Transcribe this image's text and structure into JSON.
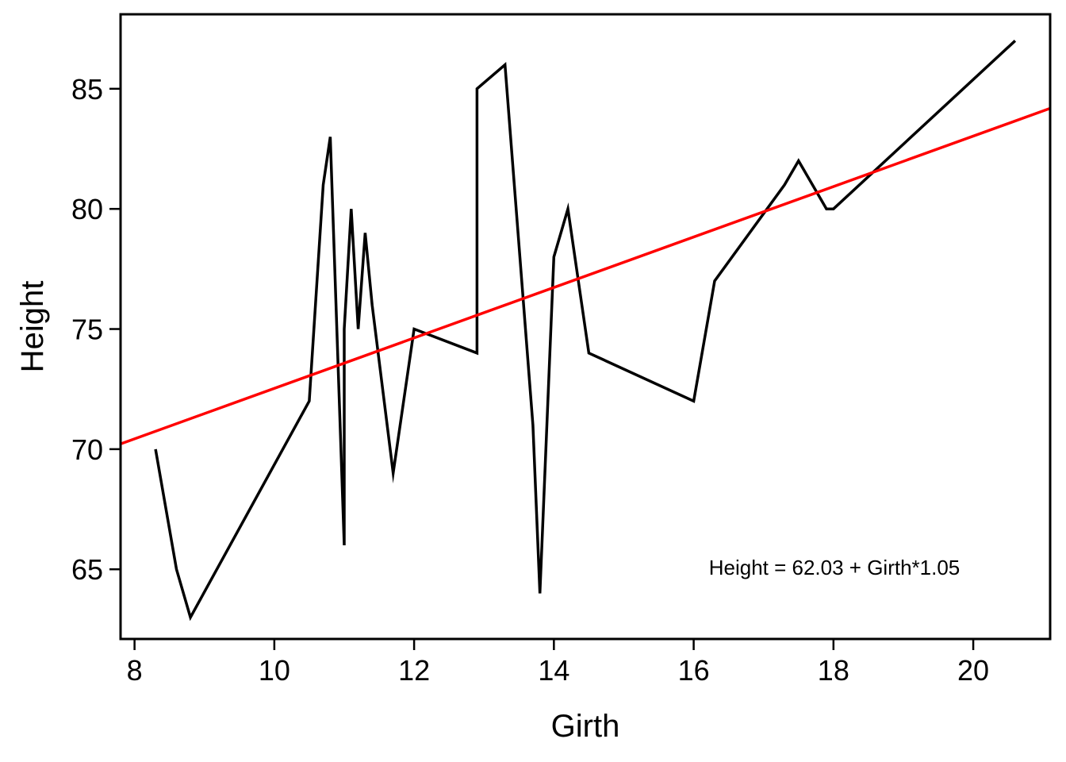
{
  "chart_data": {
    "type": "line",
    "xlabel": "Girth",
    "ylabel": "Height",
    "xlim": [
      7.8,
      21.1
    ],
    "ylim": [
      62.1,
      88.1
    ],
    "xticks": [
      8,
      10,
      12,
      14,
      16,
      18,
      20
    ],
    "yticks": [
      65,
      70,
      75,
      80,
      85
    ],
    "grid": false,
    "annotation": "Height = 62.03 + Girth*1.05",
    "series": [
      {
        "color": "#000000",
        "x": [
          8.3,
          8.6,
          8.8,
          10.5,
          10.7,
          10.8,
          11.0,
          11.0,
          11.1,
          11.2,
          11.3,
          11.4,
          11.7,
          12.0,
          12.9,
          12.9,
          13.3,
          13.7,
          13.8,
          14.0,
          14.2,
          14.5,
          16.0,
          16.3,
          17.3,
          17.5,
          17.9,
          18.0,
          18.0,
          20.6
        ],
        "y": [
          70,
          65,
          63,
          72,
          81,
          83,
          66,
          75,
          80,
          75,
          79,
          76,
          69,
          75,
          74,
          85,
          86,
          71,
          64,
          78,
          80,
          74,
          72,
          77,
          81,
          82,
          80,
          80,
          80,
          87
        ]
      }
    ],
    "regression": {
      "color": "#ff0000",
      "intercept": 62.03,
      "slope": 1.05
    }
  }
}
